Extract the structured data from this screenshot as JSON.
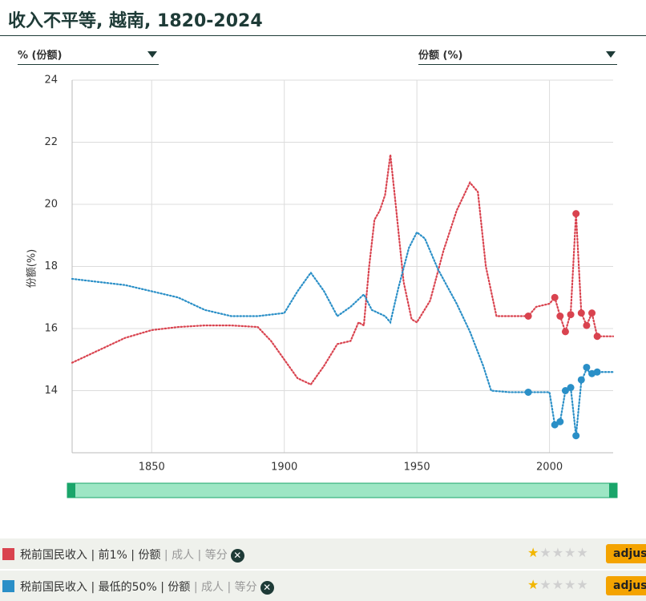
{
  "chart_data": {
    "type": "line",
    "title": "收入不平等, 越南, 1820-2024",
    "dropdown_left": "% (份额)",
    "dropdown_right": "份额 (%)",
    "y_label": "份额(%)",
    "xlim": [
      1820,
      2024
    ],
    "xticks": [
      1850,
      1900,
      1950,
      2000
    ],
    "ylim": [
      12,
      24
    ],
    "yticks": [
      14,
      16,
      18,
      20,
      22,
      24
    ],
    "grid": true,
    "series": [
      {
        "name": "税前国民收入 | 前1%",
        "color": "#d9434f",
        "legend_parts": [
          "税前国民收入",
          "前1%",
          "份额",
          "成人",
          "等分"
        ],
        "rating": 1,
        "button": "adjust",
        "x": [
          1820,
          1830,
          1840,
          1850,
          1860,
          1870,
          1880,
          1890,
          1895,
          1900,
          1905,
          1910,
          1915,
          1920,
          1925,
          1928,
          1930,
          1932,
          1934,
          1936,
          1938,
          1940,
          1942,
          1945,
          1948,
          1950,
          1955,
          1960,
          1965,
          1970,
          1973,
          1976,
          1980,
          1990,
          1992,
          1995,
          2000,
          2002,
          2004,
          2006,
          2008,
          2010,
          2012,
          2014,
          2016,
          2018,
          2024
        ],
        "values": [
          14.9,
          15.3,
          15.7,
          15.95,
          16.05,
          16.1,
          16.1,
          16.05,
          15.6,
          15.0,
          14.4,
          14.2,
          14.8,
          15.5,
          15.6,
          16.2,
          16.1,
          18.0,
          19.5,
          19.8,
          20.3,
          21.6,
          20.0,
          17.5,
          16.3,
          16.2,
          16.9,
          18.5,
          19.8,
          20.7,
          20.4,
          18.0,
          16.4,
          16.4,
          16.4,
          16.7,
          16.8,
          17.0,
          16.4,
          15.9,
          16.5,
          19.7,
          16.5,
          16.1,
          16.5,
          15.75,
          15.75
        ],
        "points": {
          "x": [
            1992,
            2002,
            2004,
            2006,
            2008,
            2010,
            2012,
            2014,
            2016,
            2018
          ],
          "values": [
            16.4,
            17.0,
            16.4,
            15.9,
            16.45,
            19.7,
            16.5,
            16.1,
            16.5,
            15.75
          ]
        }
      },
      {
        "name": "税前国民收入 | 最低的50%",
        "color": "#2a8fc7",
        "legend_parts": [
          "税前国民收入",
          "最低的50%",
          "份额",
          "成人",
          "等分"
        ],
        "rating": 1,
        "button": "adjust",
        "x": [
          1820,
          1840,
          1860,
          1870,
          1880,
          1890,
          1900,
          1905,
          1910,
          1915,
          1920,
          1925,
          1930,
          1933,
          1938,
          1940,
          1943,
          1947,
          1950,
          1953,
          1958,
          1965,
          1970,
          1975,
          1978,
          1985,
          1992,
          2000,
          2002,
          2004,
          2006,
          2008,
          2010,
          2012,
          2014,
          2016,
          2018,
          2024
        ],
        "values": [
          17.6,
          17.4,
          17.0,
          16.6,
          16.4,
          16.4,
          16.5,
          17.2,
          17.8,
          17.2,
          16.4,
          16.7,
          17.1,
          16.6,
          16.4,
          16.2,
          17.3,
          18.6,
          19.1,
          18.9,
          17.9,
          16.8,
          15.9,
          14.8,
          14.0,
          13.95,
          13.95,
          13.95,
          12.9,
          13.0,
          14.0,
          14.1,
          12.55,
          14.3,
          14.7,
          14.5,
          14.6,
          14.6
        ],
        "points": {
          "x": [
            1992,
            2002,
            2004,
            2006,
            2008,
            2010,
            2012,
            2014,
            2016,
            2018
          ],
          "values": [
            13.95,
            12.9,
            13.0,
            14.0,
            14.1,
            12.55,
            14.35,
            14.75,
            14.55,
            14.6
          ]
        }
      }
    ]
  }
}
